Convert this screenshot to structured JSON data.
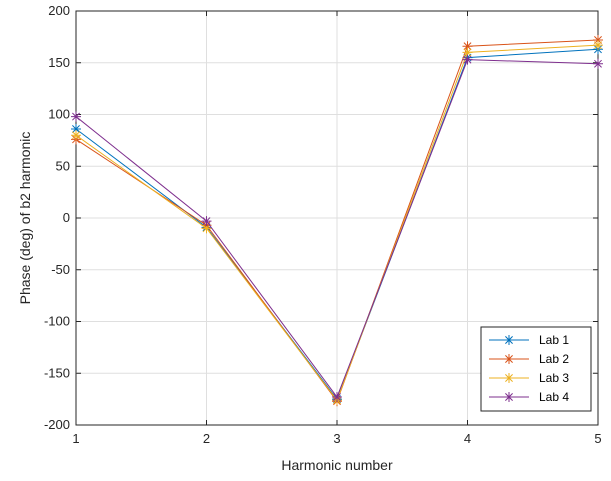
{
  "chart_data": {
    "type": "line",
    "xlabel": "Harmonic number",
    "ylabel": "Phase (deg) of b2 harmonic",
    "xlim": [
      1,
      5
    ],
    "ylim": [
      -200,
      200
    ],
    "xticks": [
      "1",
      "2",
      "3",
      "4",
      "5"
    ],
    "yticks": [
      "-200",
      "-150",
      "-100",
      "-50",
      "0",
      "50",
      "100",
      "150",
      "200"
    ],
    "grid": true,
    "legend_position": "bottom-right",
    "marker": "asterisk",
    "x": [
      1,
      2,
      3,
      4,
      5
    ],
    "series": [
      {
        "name": "Lab 1",
        "color": "#0072BD",
        "values": [
          86,
          -9,
          -175,
          155,
          163
        ]
      },
      {
        "name": "Lab 2",
        "color": "#D95319",
        "values": [
          76,
          -7,
          -177,
          166,
          172
        ]
      },
      {
        "name": "Lab 3",
        "color": "#EDB120",
        "values": [
          80,
          -10,
          -176,
          160,
          167
        ]
      },
      {
        "name": "Lab 4",
        "color": "#7E2F8E",
        "values": [
          98,
          -3,
          -173,
          153,
          149
        ]
      }
    ]
  }
}
